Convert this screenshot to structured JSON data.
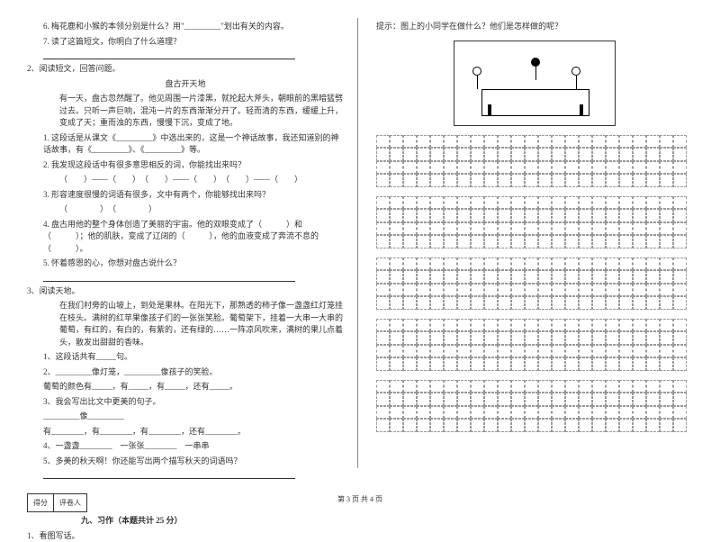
{
  "left": {
    "q6": "6. 梅花鹿和小猴的本领分别是什么？用\"_________\"划出有关的内容。",
    "q7": "7. 读了这篇短文，你明白了什么道理？",
    "sec2": "2、阅读短文，回答问题。",
    "title2": "盘古开天地",
    "p2a": "有一天，盘古忽然醒了。他见周围一片漆黑，就抡起大斧头，朝眼前的黑暗猛劈过去。只听一声巨响，混沌一片的东西渐渐分开了。轻而清的东西，缓缓上升，变成了天；重而浊的东西，慢慢下沉，变成了地。",
    "q2_1": "1. 这段话是从课文《_________》中选出来的，这是一个神话故事，我还知道别的神话故事，有《_________》、《_________》等。",
    "q2_2": "2. 我发现这段话中有很多意思相反的词，你能找出来吗？",
    "q2_2b": "（　　）——（　　）　（　　）——（　　）　（　　）——（　　）",
    "q2_3": "3. 形容速度很慢的词语有很多，文中有两个，你能够找出来吗？",
    "q2_3b": "（　　　　）　（　　　　）",
    "q2_4": "4. 盘古用他的整个身体创造了美丽的宇宙。他的双眼变成了（　　　）和（　　　）；他的肌肤，变成了辽阔的（　　　），他的血液变成了奔流不息的（　　　）。",
    "q2_5": "5. 怀着感恩的心，你想对盘古说什么？",
    "sec3": "3、阅读天地。",
    "p3a": "在我们村旁的山坡上，到处是果林。在阳光下，那熟透的柿子像一盏盏红灯笼挂在枝头。满树的红苹果像孩子们的一张张笑脸。葡萄架下，挂着一大串一大串的葡萄，有红的，有白的，有紫的，还有绿的……一阵凉风吹来，满树的果儿点着头，散发出甜甜的香味。",
    "q3_1": "1、这段话共有_____句。",
    "q3_2a": "2、_________像灯笼，_________像孩子的笑脸。",
    "q3_2b": "葡萄的颜色有_____，有_____，有_____，还有_____。",
    "q3_3a": "3、我会写出比文中更美的句子。",
    "q3_3b": "_________像_________",
    "q3_3c": "有________，有________，有________，还有________。",
    "q3_4": "4、一盏盏________　一张张________　一串串",
    "q3_5": "5、多美的秋天啊！你还能写出两个描写秋天的词语吗？",
    "score1": "得分",
    "score2": "评卷人",
    "sec9": "九、习作（本题共计 25 分）",
    "q9_1": "1、看图写话。"
  },
  "right": {
    "hint": "提示：图上的小同学在做什么？他们是怎样做的呢？"
  },
  "footer": "第 3 页  共 4 页",
  "style": {
    "bg": "#ffffff",
    "text": "#333333",
    "grid_border_color": "#999999",
    "grid_cols": 23,
    "grid_rows_per_block": 4,
    "grid_blocks": 5,
    "font_size_body": 9,
    "font_size_footer": 8
  }
}
